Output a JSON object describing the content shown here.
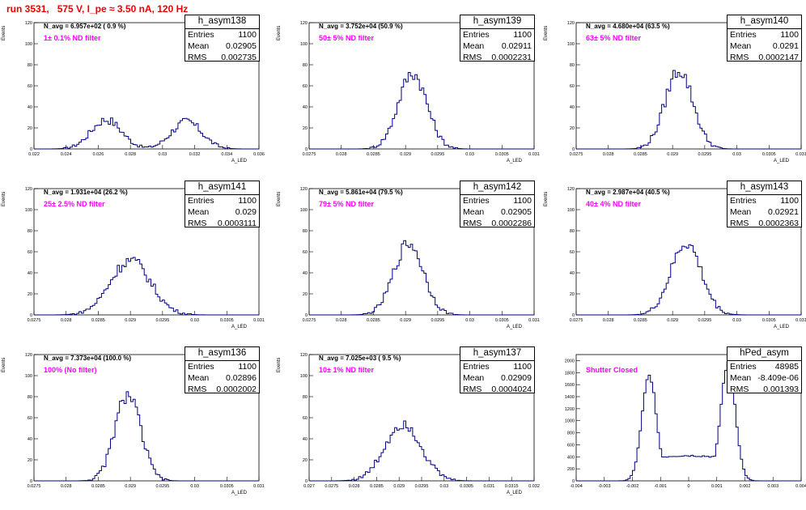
{
  "run_title": "run 3531,   575 V, I_pe ≈ 3.50 nA, 120 Hz",
  "colors": {
    "title": "#ee0000",
    "filter_label": "#ff00ff",
    "histogram": "#000080",
    "axis": "#000000"
  },
  "chart_data": [
    {
      "type": "histogram",
      "name": "h_asym138",
      "navg": "N_avg = 6.957e+02 ( 0.9 %)",
      "filter": "1± 0.1% ND filter",
      "stats": {
        "entries": "1100",
        "mean": "0.02905",
        "rms": "0.002735"
      },
      "xlabel": "A_LED",
      "ylabel": "Events",
      "xlim": [
        0.022,
        0.036
      ],
      "ylim": [
        0,
        120
      ],
      "xticks": [
        "0.022",
        "0.024",
        "0.026",
        "0.028",
        "0.03",
        "0.032",
        "0.034",
        "0.036"
      ],
      "xtick_values": [
        0.022,
        0.024,
        0.026,
        0.028,
        0.03,
        0.032,
        0.034,
        0.036
      ],
      "yticks": [
        0,
        20,
        40,
        60,
        80,
        100,
        120
      ],
      "bimodal": true,
      "peaks": [
        {
          "mu": 0.0265,
          "sigma": 0.00095,
          "amp": 28
        },
        {
          "mu": 0.0315,
          "sigma": 0.00095,
          "amp": 26
        }
      ]
    },
    {
      "type": "histogram",
      "name": "h_asym139",
      "navg": "N_avg = 3.752e+04 (50.9 %)",
      "filter": "50± 5% ND filter",
      "stats": {
        "entries": "1100",
        "mean": "0.02911",
        "rms": "0.0002231"
      },
      "xlabel": "A_LED",
      "ylabel": "Events",
      "xlim": [
        0.0275,
        0.031
      ],
      "ylim": [
        0,
        120
      ],
      "xticks": [
        "0.0275",
        "0.028",
        "0.0285",
        "0.029",
        "0.0295",
        "0.03",
        "0.0305",
        "0.031"
      ],
      "xtick_values": [
        0.0275,
        0.028,
        0.0285,
        0.029,
        0.0295,
        0.03,
        0.0305,
        0.031
      ],
      "yticks": [
        0,
        20,
        40,
        60,
        80,
        100,
        120
      ],
      "peaks": [
        {
          "mu": 0.02911,
          "sigma": 0.000223,
          "amp": 72
        }
      ]
    },
    {
      "type": "histogram",
      "name": "h_asym140",
      "navg": "N_avg = 4.680e+04 (63.5 %)",
      "filter": "63± 5% ND filter",
      "stats": {
        "entries": "1100",
        "mean": "0.0291",
        "rms": "0.0002147"
      },
      "xlabel": "A_LED",
      "ylabel": "Events",
      "xlim": [
        0.0275,
        0.031
      ],
      "ylim": [
        0,
        120
      ],
      "xticks": [
        "0.0275",
        "0.028",
        "0.0285",
        "0.029",
        "0.0295",
        "0.03",
        "0.0305",
        "0.031"
      ],
      "xtick_values": [
        0.0275,
        0.028,
        0.0285,
        0.029,
        0.0295,
        0.03,
        0.0305,
        0.031
      ],
      "yticks": [
        0,
        20,
        40,
        60,
        80,
        100,
        120
      ],
      "peaks": [
        {
          "mu": 0.0291,
          "sigma": 0.000215,
          "amp": 75
        }
      ]
    },
    {
      "type": "histogram",
      "name": "h_asym141",
      "navg": "N_avg = 1.931e+04 (26.2 %)",
      "filter": "25± 2.5% ND filter",
      "stats": {
        "entries": "1100",
        "mean": "0.029",
        "rms": "0.0003111"
      },
      "xlabel": "A_LED",
      "ylabel": "Events",
      "xlim": [
        0.0275,
        0.031
      ],
      "ylim": [
        0,
        120
      ],
      "xticks": [
        "0.0275",
        "0.028",
        "0.0285",
        "0.029",
        "0.0295",
        "0.03",
        "0.0305",
        "0.031"
      ],
      "xtick_values": [
        0.0275,
        0.028,
        0.0285,
        0.029,
        0.0295,
        0.03,
        0.0305,
        0.031
      ],
      "yticks": [
        0,
        20,
        40,
        60,
        80,
        100,
        120
      ],
      "peaks": [
        {
          "mu": 0.029,
          "sigma": 0.000311,
          "amp": 52
        }
      ]
    },
    {
      "type": "histogram",
      "name": "h_asym142",
      "navg": "N_avg = 5.861e+04 (79.5 %)",
      "filter": "79± 5% ND filter",
      "stats": {
        "entries": "1100",
        "mean": "0.02905",
        "rms": "0.0002286"
      },
      "xlabel": "A_LED",
      "ylabel": "Events",
      "xlim": [
        0.0275,
        0.031
      ],
      "ylim": [
        0,
        120
      ],
      "xticks": [
        "0.0275",
        "0.028",
        "0.0285",
        "0.029",
        "0.0295",
        "0.03",
        "0.0305",
        "0.031"
      ],
      "xtick_values": [
        0.0275,
        0.028,
        0.0285,
        0.029,
        0.0295,
        0.03,
        0.0305,
        0.031
      ],
      "yticks": [
        0,
        20,
        40,
        60,
        80,
        100,
        120
      ],
      "peaks": [
        {
          "mu": 0.02905,
          "sigma": 0.000229,
          "amp": 68
        }
      ]
    },
    {
      "type": "histogram",
      "name": "h_asym143",
      "navg": "N_avg = 2.987e+04 (40.5 %)",
      "filter": "40± 4% ND filter",
      "stats": {
        "entries": "1100",
        "mean": "0.02921",
        "rms": "0.0002363"
      },
      "xlabel": "A_LED",
      "ylabel": "Events",
      "xlim": [
        0.0275,
        0.031
      ],
      "ylim": [
        0,
        120
      ],
      "xticks": [
        "0.0275",
        "0.028",
        "0.0285",
        "0.029",
        "0.0295",
        "0.03",
        "0.0305",
        "0.031"
      ],
      "xtick_values": [
        0.0275,
        0.028,
        0.0285,
        0.029,
        0.0295,
        0.03,
        0.0305,
        0.031
      ],
      "yticks": [
        0,
        20,
        40,
        60,
        80,
        100,
        120
      ],
      "peaks": [
        {
          "mu": 0.02921,
          "sigma": 0.000236,
          "amp": 68
        }
      ]
    },
    {
      "type": "histogram",
      "name": "h_asym136",
      "navg": "N_avg = 7.373e+04 (100.0 %)",
      "filter": "100% (No filter)",
      "stats": {
        "entries": "1100",
        "mean": "0.02896",
        "rms": "0.0002002"
      },
      "xlabel": "A_LED",
      "ylabel": "Events",
      "xlim": [
        0.0275,
        0.031
      ],
      "ylim": [
        0,
        120
      ],
      "xticks": [
        "0.0275",
        "0.028",
        "0.0285",
        "0.029",
        "0.0295",
        "0.03",
        "0.0305",
        "0.031"
      ],
      "xtick_values": [
        0.0275,
        0.028,
        0.0285,
        0.029,
        0.0295,
        0.03,
        0.0305,
        0.031
      ],
      "yticks": [
        0,
        20,
        40,
        60,
        80,
        100,
        120
      ],
      "peaks": [
        {
          "mu": 0.02896,
          "sigma": 0.0002,
          "amp": 82
        }
      ]
    },
    {
      "type": "histogram",
      "name": "h_asym137",
      "navg": "N_avg = 7.025e+03 ( 9.5 %)",
      "filter": "10± 1% ND filter",
      "stats": {
        "entries": "1100",
        "mean": "0.02909",
        "rms": "0.0004024"
      },
      "xlabel": "A_LED",
      "ylabel": "Events",
      "xlim": [
        0.027,
        0.032
      ],
      "ylim": [
        0,
        120
      ],
      "xticks": [
        "0.027",
        "0.0275",
        "0.028",
        "0.0285",
        "0.029",
        "0.0295",
        "0.03",
        "0.0305",
        "0.031",
        "0.0315",
        "0.032"
      ],
      "xtick_values": [
        0.027,
        0.0275,
        0.028,
        0.0285,
        0.029,
        0.0295,
        0.03,
        0.0305,
        0.031,
        0.0315,
        0.032
      ],
      "yticks": [
        0,
        20,
        40,
        60,
        80,
        100,
        120
      ],
      "peaks": [
        {
          "mu": 0.02909,
          "sigma": 0.0004,
          "amp": 55
        }
      ]
    },
    {
      "type": "histogram",
      "name": "hPed_asym",
      "navg": "",
      "filter": "Shutter Closed",
      "stats": {
        "entries": "48985",
        "mean": "-8.409e-06",
        "rms": "0.001393"
      },
      "xlabel": "",
      "ylabel": "",
      "xlim": [
        -0.004,
        0.004
      ],
      "ylim": [
        0,
        2100
      ],
      "xticks": [
        "-0.004",
        "-0.003",
        "-0.002",
        "-0.001",
        "0",
        "0.001",
        "0.002",
        "0.003",
        "0.004"
      ],
      "xtick_values": [
        -0.004,
        -0.003,
        -0.002,
        -0.001,
        0,
        0.001,
        0.002,
        0.003,
        0.004
      ],
      "yticks": [
        0,
        200,
        400,
        600,
        800,
        1000,
        1200,
        1400,
        1600,
        1800,
        2000
      ],
      "bimodal": true,
      "pedestal": true,
      "peaks": [
        {
          "mu": -0.0014,
          "sigma": 0.00026,
          "amp": 1750
        },
        {
          "mu": 0.0014,
          "sigma": 0.00026,
          "amp": 1950
        }
      ],
      "floor": 420
    }
  ]
}
